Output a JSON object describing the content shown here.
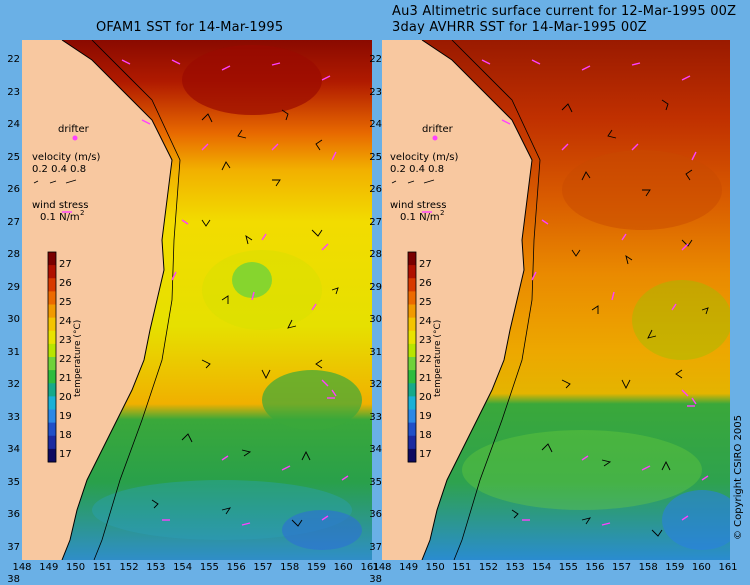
{
  "titles": {
    "left": "OFAM1 SST for 14-Mar-1995",
    "right_line1": "Au3 Altimetric surface current for 12-Mar-1995 00Z",
    "right_line2": "3day AVHRR SST for 14-Mar-1995 00Z"
  },
  "y_ticks": [
    "22",
    "23",
    "24",
    "25",
    "26",
    "27",
    "28",
    "29",
    "30",
    "31",
    "32",
    "33",
    "34",
    "35",
    "36",
    "37",
    "38"
  ],
  "x_ticks": [
    "148",
    "149",
    "150",
    "151",
    "152",
    "153",
    "154",
    "155",
    "156",
    "157",
    "158",
    "159",
    "160",
    "161"
  ],
  "legend": {
    "drifter": "drifter",
    "velocity_title": "velocity (m/s)",
    "velocity_values": "0.2 0.4 0.8",
    "wind_title": "wind stress",
    "wind_value": "0.1 N/m",
    "wind_sup": "2"
  },
  "colorbar": {
    "label": "temperature (°C)",
    "ticks": [
      "27",
      "26",
      "25",
      "24",
      "23",
      "22",
      "21",
      "20",
      "19",
      "18",
      "17"
    ],
    "colors": [
      "#7a0000",
      "#b01000",
      "#d83a00",
      "#ec6a00",
      "#f29a00",
      "#f4c400",
      "#e9e200",
      "#b8e400",
      "#6fd23a",
      "#2dbc3f",
      "#16a98a",
      "#1ab0d6",
      "#2a88e6",
      "#2050c8",
      "#1a2aa0",
      "#0e0a60"
    ]
  },
  "map_meta": {
    "left_top_color": "#8a0a00",
    "left_mid_color": "#f5c400",
    "left_bottom_color": "#3aa13a",
    "right_top_color": "#9a1a00",
    "right_mid_color": "#e4a200",
    "right_bottom_color": "#37a043",
    "land_color": "#f8c8a0",
    "ocean_background": "#6ab0e6"
  },
  "copyright": "© Copyright CSIRO 2005"
}
